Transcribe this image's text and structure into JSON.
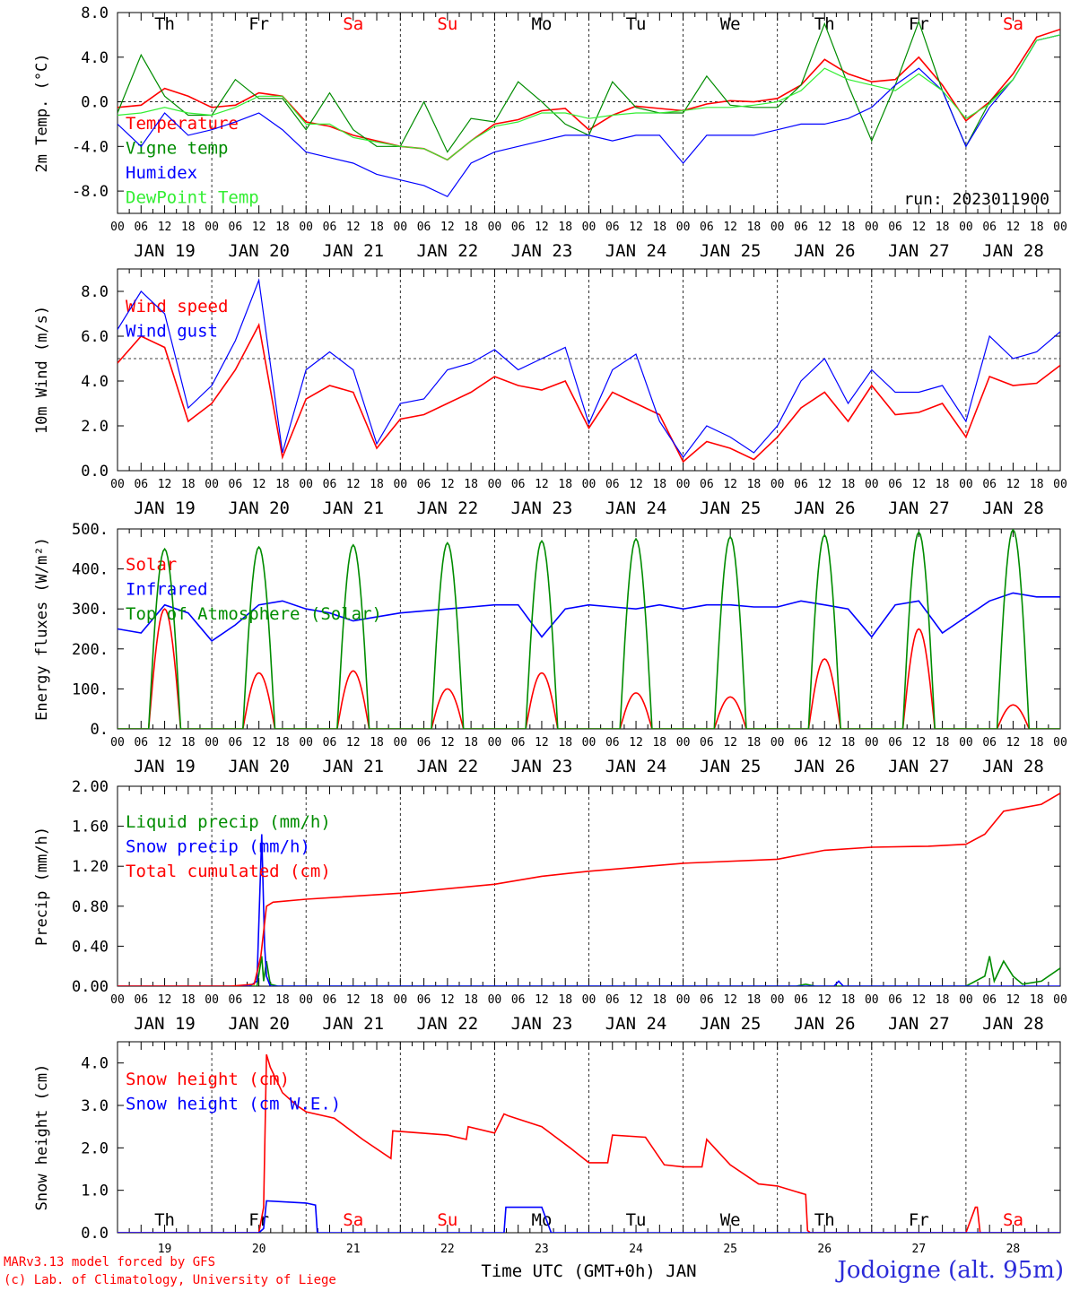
{
  "figure": {
    "run_label": "run: 2023011900",
    "x_title": "Time UTC (GMT+0h) JAN",
    "credit_line1": "MARv3.13 model forced by GFS",
    "credit_line2": "(c) Lab. of Climatology, University of Liege",
    "station": "Jodoigne (alt. 95m)",
    "hour_ticks": [
      "00",
      "06",
      "12",
      "18"
    ],
    "last_tick": "00",
    "date_labels": [
      "JAN 19",
      "JAN 20",
      "JAN 21",
      "JAN 22",
      "JAN 23",
      "JAN 24",
      "JAN 25",
      "JAN 26",
      "JAN 27",
      "JAN 28"
    ],
    "weekdays": [
      "Th",
      "Fr",
      "Sa",
      "Su",
      "Mo",
      "Tu",
      "We",
      "Th",
      "Fr",
      "Sa"
    ],
    "weekend_days": [
      2,
      3,
      9
    ],
    "bottom_day_numbers": [
      "19",
      "20",
      "21",
      "22",
      "23",
      "24",
      "25",
      "26",
      "27",
      "28"
    ],
    "colors": {
      "red": "#ff0000",
      "green": "#008c00",
      "blue": "#0000ff",
      "lightgreen": "#33ee33",
      "weekend": "#ff0000",
      "axis": "#000000"
    }
  },
  "chart_data": [
    {
      "type": "line",
      "ylabel": "2m Temp. (°C)",
      "ylim": [
        -10,
        8
      ],
      "yticks": [
        -8,
        -4,
        0,
        4,
        8
      ],
      "ytick_labels": [
        "-8.0",
        "-4.0",
        "0.0",
        "4.0",
        "8.0"
      ],
      "reference_line": 0,
      "x": [
        0,
        0.25,
        0.5,
        0.75,
        1,
        1.25,
        1.5,
        1.75,
        2,
        2.25,
        2.5,
        2.75,
        3,
        3.25,
        3.5,
        3.75,
        4,
        4.25,
        4.5,
        4.75,
        5,
        5.25,
        5.5,
        5.75,
        6,
        6.25,
        6.5,
        6.75,
        7,
        7.25,
        7.5,
        7.75,
        8,
        8.25,
        8.5,
        8.75,
        9,
        9.25,
        9.5,
        9.75,
        10
      ],
      "series": [
        {
          "name": "Temperature",
          "color": "red",
          "values": [
            -0.5,
            -0.3,
            1.2,
            0.5,
            -0.5,
            -0.3,
            0.8,
            0.5,
            -1.8,
            -2.2,
            -3.0,
            -3.5,
            -4.0,
            -4.2,
            -5.2,
            -3.5,
            -2.0,
            -1.6,
            -0.8,
            -0.6,
            -2.5,
            -1.2,
            -0.4,
            -0.6,
            -0.8,
            -0.2,
            0.1,
            0.0,
            0.3,
            1.5,
            3.8,
            2.5,
            1.8,
            2.0,
            4.0,
            1.5,
            -1.7,
            0.0,
            2.5,
            5.8,
            6.5
          ]
        },
        {
          "name": "Vigne temp",
          "color": "green",
          "values": [
            -1.0,
            4.2,
            0.5,
            -1.2,
            -1.2,
            2.0,
            0.3,
            0.3,
            -2.5,
            0.8,
            -2.5,
            -4.0,
            -4.0,
            0.0,
            -4.5,
            -1.5,
            -1.8,
            1.8,
            0.0,
            -2.0,
            -3.0,
            1.8,
            -0.5,
            -1.0,
            -1.0,
            2.3,
            -0.3,
            -0.5,
            -0.5,
            1.5,
            7.0,
            1.5,
            -3.5,
            1.5,
            7.2,
            1.0,
            -4.0,
            0.0,
            2.0,
            5.5,
            6.0
          ]
        },
        {
          "name": "Humidex",
          "color": "blue",
          "values": [
            -2.0,
            -4.0,
            -1.0,
            -3.0,
            -2.5,
            -1.8,
            -1.0,
            -2.5,
            -4.5,
            -5.0,
            -5.5,
            -6.5,
            -7.0,
            -7.5,
            -8.5,
            -5.5,
            -4.5,
            -4.0,
            -3.5,
            -3.0,
            -3.0,
            -3.5,
            -3.0,
            -3.0,
            -5.5,
            -3.0,
            -3.0,
            -3.0,
            -2.5,
            -2.0,
            -2.0,
            -1.5,
            -0.5,
            1.5,
            3.0,
            1.0,
            -4.0,
            -0.5,
            2.0,
            5.5,
            6.0
          ]
        },
        {
          "name": "DewPoint Temp",
          "color": "lightgreen",
          "values": [
            -1.2,
            -1.0,
            -0.5,
            -1.0,
            -1.2,
            -0.5,
            0.5,
            0.5,
            -2.0,
            -2.0,
            -3.2,
            -3.6,
            -4.0,
            -4.2,
            -5.2,
            -3.5,
            -2.2,
            -1.8,
            -1.0,
            -1.0,
            -1.5,
            -1.2,
            -1.0,
            -1.0,
            -0.8,
            -0.5,
            -0.5,
            -0.3,
            0.0,
            1.0,
            3.0,
            2.0,
            1.5,
            1.0,
            2.5,
            1.0,
            -1.5,
            -0.2,
            2.0,
            5.5,
            6.0
          ]
        }
      ]
    },
    {
      "type": "line",
      "ylabel": "10m Wind (m/s)",
      "ylim": [
        0,
        9
      ],
      "yticks": [
        0,
        2,
        4,
        6,
        8
      ],
      "ytick_labels": [
        "0.0",
        "2.0",
        "4.0",
        "6.0",
        "8.0"
      ],
      "reference_line": 5,
      "x": [
        0,
        0.25,
        0.5,
        0.75,
        1,
        1.25,
        1.5,
        1.75,
        2,
        2.25,
        2.5,
        2.75,
        3,
        3.25,
        3.5,
        3.75,
        4,
        4.25,
        4.5,
        4.75,
        5,
        5.25,
        5.5,
        5.75,
        6,
        6.25,
        6.5,
        6.75,
        7,
        7.25,
        7.5,
        7.75,
        8,
        8.25,
        8.5,
        8.75,
        9,
        9.25,
        9.5,
        9.75,
        10
      ],
      "series": [
        {
          "name": "Wind speed",
          "color": "red",
          "values": [
            4.8,
            6.0,
            5.5,
            2.2,
            3.0,
            4.5,
            6.5,
            0.6,
            3.2,
            3.8,
            3.5,
            1.0,
            2.3,
            2.5,
            3.0,
            3.5,
            4.2,
            3.8,
            3.6,
            4.0,
            1.9,
            3.5,
            3.0,
            2.5,
            0.4,
            1.3,
            1.0,
            0.5,
            1.5,
            2.8,
            3.5,
            2.2,
            3.8,
            2.5,
            2.6,
            3.0,
            1.5,
            4.2,
            3.8,
            3.9,
            4.7
          ]
        },
        {
          "name": "Wind gust",
          "color": "blue",
          "values": [
            6.3,
            8.0,
            7.0,
            2.8,
            3.8,
            5.8,
            8.5,
            0.8,
            4.5,
            5.3,
            4.5,
            1.2,
            3.0,
            3.2,
            4.5,
            4.8,
            5.4,
            4.5,
            5.0,
            5.5,
            2.1,
            4.5,
            5.2,
            2.2,
            0.6,
            2.0,
            1.5,
            0.8,
            2.0,
            4.0,
            5.0,
            3.0,
            4.5,
            3.5,
            3.5,
            3.8,
            2.2,
            6.0,
            5.0,
            5.3,
            6.2
          ]
        }
      ]
    },
    {
      "type": "line",
      "ylabel": "Energy fluxes (W/m²)",
      "ylim": [
        0,
        500
      ],
      "yticks": [
        0,
        100,
        200,
        300,
        400,
        500
      ],
      "ytick_labels": [
        "0.",
        "100.",
        "200.",
        "300.",
        "400.",
        "500."
      ],
      "x": [
        0,
        0.25,
        0.5,
        0.75,
        1,
        1.25,
        1.5,
        1.75,
        2,
        2.25,
        2.5,
        2.75,
        3,
        3.25,
        3.5,
        3.75,
        4,
        4.25,
        4.5,
        4.75,
        5,
        5.25,
        5.5,
        5.75,
        6,
        6.25,
        6.5,
        6.75,
        7,
        7.25,
        7.5,
        7.75,
        8,
        8.25,
        8.5,
        8.75,
        9,
        9.25,
        9.5,
        9.75,
        10
      ],
      "series": [
        {
          "name": "Solar",
          "color": "red",
          "peaks": [
            {
              "day": 0,
              "value": 300
            },
            {
              "day": 1,
              "value": 140
            },
            {
              "day": 2,
              "value": 145
            },
            {
              "day": 3,
              "value": 100
            },
            {
              "day": 4,
              "value": 140
            },
            {
              "day": 5,
              "value": 90
            },
            {
              "day": 6,
              "value": 80
            },
            {
              "day": 7,
              "value": 175
            },
            {
              "day": 8,
              "value": 250
            },
            {
              "day": 9,
              "value": 60
            }
          ]
        },
        {
          "name": "Infrared",
          "color": "blue",
          "values": [
            250,
            240,
            310,
            290,
            220,
            260,
            310,
            320,
            300,
            290,
            270,
            280,
            290,
            295,
            300,
            305,
            310,
            310,
            230,
            300,
            310,
            305,
            300,
            310,
            300,
            310,
            310,
            305,
            305,
            320,
            310,
            300,
            230,
            310,
            320,
            240,
            280,
            320,
            340,
            330,
            330
          ]
        },
        {
          "name": "Top of Atmosphere (Solar)",
          "color": "green",
          "peaks": [
            {
              "day": 0,
              "value": 450
            },
            {
              "day": 1,
              "value": 455
            },
            {
              "day": 2,
              "value": 460
            },
            {
              "day": 3,
              "value": 465
            },
            {
              "day": 4,
              "value": 470
            },
            {
              "day": 5,
              "value": 475
            },
            {
              "day": 6,
              "value": 480
            },
            {
              "day": 7,
              "value": 485
            },
            {
              "day": 8,
              "value": 492
            },
            {
              "day": 9,
              "value": 498
            }
          ]
        }
      ]
    },
    {
      "type": "line",
      "ylabel": "Precip (mm/h)",
      "ylim": [
        0,
        2
      ],
      "yticks": [
        0,
        0.4,
        0.8,
        1.2,
        1.6,
        2.0
      ],
      "ytick_labels": [
        "0.00",
        "0.40",
        "0.80",
        "1.20",
        "1.60",
        "2.00"
      ],
      "series": [
        {
          "name": "Liquid precip (mm/h)",
          "color": "green",
          "x": [
            0,
            1.4,
            1.48,
            1.53,
            1.55,
            1.58,
            1.62,
            1.7,
            7.2,
            7.3,
            7.4,
            9.0,
            9.2,
            9.25,
            9.3,
            9.4,
            9.5,
            9.6,
            9.8,
            10
          ],
          "values": [
            0,
            0,
            0,
            0.3,
            0.05,
            0.25,
            0.02,
            0,
            0,
            0.02,
            0,
            0,
            0.1,
            0.3,
            0.05,
            0.25,
            0.1,
            0.02,
            0.05,
            0.18
          ]
        },
        {
          "name": "Snow precip (mm/h)",
          "color": "blue",
          "x": [
            0,
            1.4,
            1.48,
            1.53,
            1.56,
            1.58,
            1.62,
            1.7,
            7.6,
            7.65,
            7.7,
            10
          ],
          "values": [
            0,
            0,
            0.05,
            1.52,
            0.4,
            0.1,
            0,
            0,
            0,
            0.05,
            0,
            0
          ]
        },
        {
          "name": "Total cumulated (cm)",
          "color": "red",
          "x": [
            0,
            1.2,
            1.45,
            1.52,
            1.58,
            1.65,
            2,
            3,
            4,
            4.5,
            5,
            6,
            7,
            7.5,
            8,
            8.6,
            9,
            9.2,
            9.4,
            9.8,
            10
          ],
          "values": [
            0,
            0,
            0.02,
            0.3,
            0.8,
            0.84,
            0.87,
            0.93,
            1.02,
            1.1,
            1.15,
            1.23,
            1.27,
            1.36,
            1.39,
            1.4,
            1.42,
            1.52,
            1.75,
            1.82,
            1.93
          ]
        }
      ]
    },
    {
      "type": "line",
      "ylabel": "Snow height (cm)",
      "ylim": [
        0,
        4.5
      ],
      "yticks": [
        0,
        1,
        2,
        3,
        4
      ],
      "ytick_labels": [
        "0.0",
        "1.0",
        "2.0",
        "3.0",
        "4.0"
      ],
      "series": [
        {
          "name": "Snow height (cm)",
          "color": "red",
          "x": [
            0,
            1.5,
            1.55,
            1.58,
            1.62,
            1.75,
            1.9,
            2,
            2.3,
            2.6,
            2.9,
            2.92,
            3.5,
            3.7,
            3.72,
            4.0,
            4.1,
            4.15,
            4.5,
            4.8,
            5.0,
            5.2,
            5.25,
            5.6,
            5.8,
            6.0,
            6.2,
            6.25,
            6.5,
            6.8,
            7.0,
            7.3,
            7.32,
            7.35,
            9.0,
            9.1,
            9.12,
            9.15,
            10
          ],
          "values": [
            0,
            0,
            0.6,
            4.2,
            3.9,
            3.3,
            3.0,
            2.85,
            2.7,
            2.2,
            1.75,
            2.4,
            2.3,
            2.2,
            2.5,
            2.35,
            2.8,
            2.75,
            2.5,
            2.0,
            1.65,
            1.65,
            2.3,
            2.25,
            1.6,
            1.55,
            1.55,
            2.2,
            1.6,
            1.15,
            1.1,
            0.9,
            0.05,
            0,
            0,
            0.6,
            0.6,
            0,
            0
          ]
        },
        {
          "name": "Snow height (cm W.E.)",
          "color": "blue",
          "x": [
            0,
            1.5,
            1.55,
            1.58,
            2.0,
            2.1,
            2.12,
            3.9,
            4.1,
            4.12,
            4.5,
            4.6,
            4.62,
            10
          ],
          "values": [
            0,
            0,
            0.1,
            0.75,
            0.7,
            0.65,
            0,
            0,
            0,
            0.6,
            0.6,
            0,
            0,
            0
          ]
        }
      ]
    }
  ]
}
